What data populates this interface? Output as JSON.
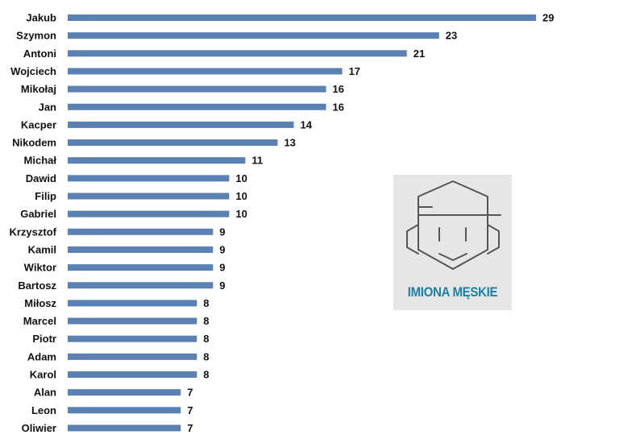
{
  "chart_data": {
    "type": "bar",
    "orientation": "horizontal",
    "categories": [
      "Jakub",
      "Szymon",
      "Antoni",
      "Wojciech",
      "Mikołaj",
      "Jan",
      "Kacper",
      "Nikodem",
      "Michał",
      "Dawid",
      "Filip",
      "Gabriel",
      "Krzysztof",
      "Kamil",
      "Wiktor",
      "Bartosz",
      "Miłosz",
      "Marcel",
      "Piotr",
      "Adam",
      "Karol",
      "Alan",
      "Leon",
      "Oliwier"
    ],
    "values": [
      29,
      23,
      21,
      17,
      16,
      16,
      14,
      13,
      11,
      10,
      10,
      10,
      9,
      9,
      9,
      9,
      8,
      8,
      8,
      8,
      8,
      7,
      7,
      7
    ],
    "xlim": [
      0,
      29
    ],
    "grid": false,
    "bar_color": "#5b80b2"
  },
  "logo": {
    "text": "IMIONA MĘSKIE",
    "icon": "boy-face-cap-icon",
    "text_color": "#1a7fa6",
    "line_color": "#555555",
    "background": "#e6e6e6"
  }
}
